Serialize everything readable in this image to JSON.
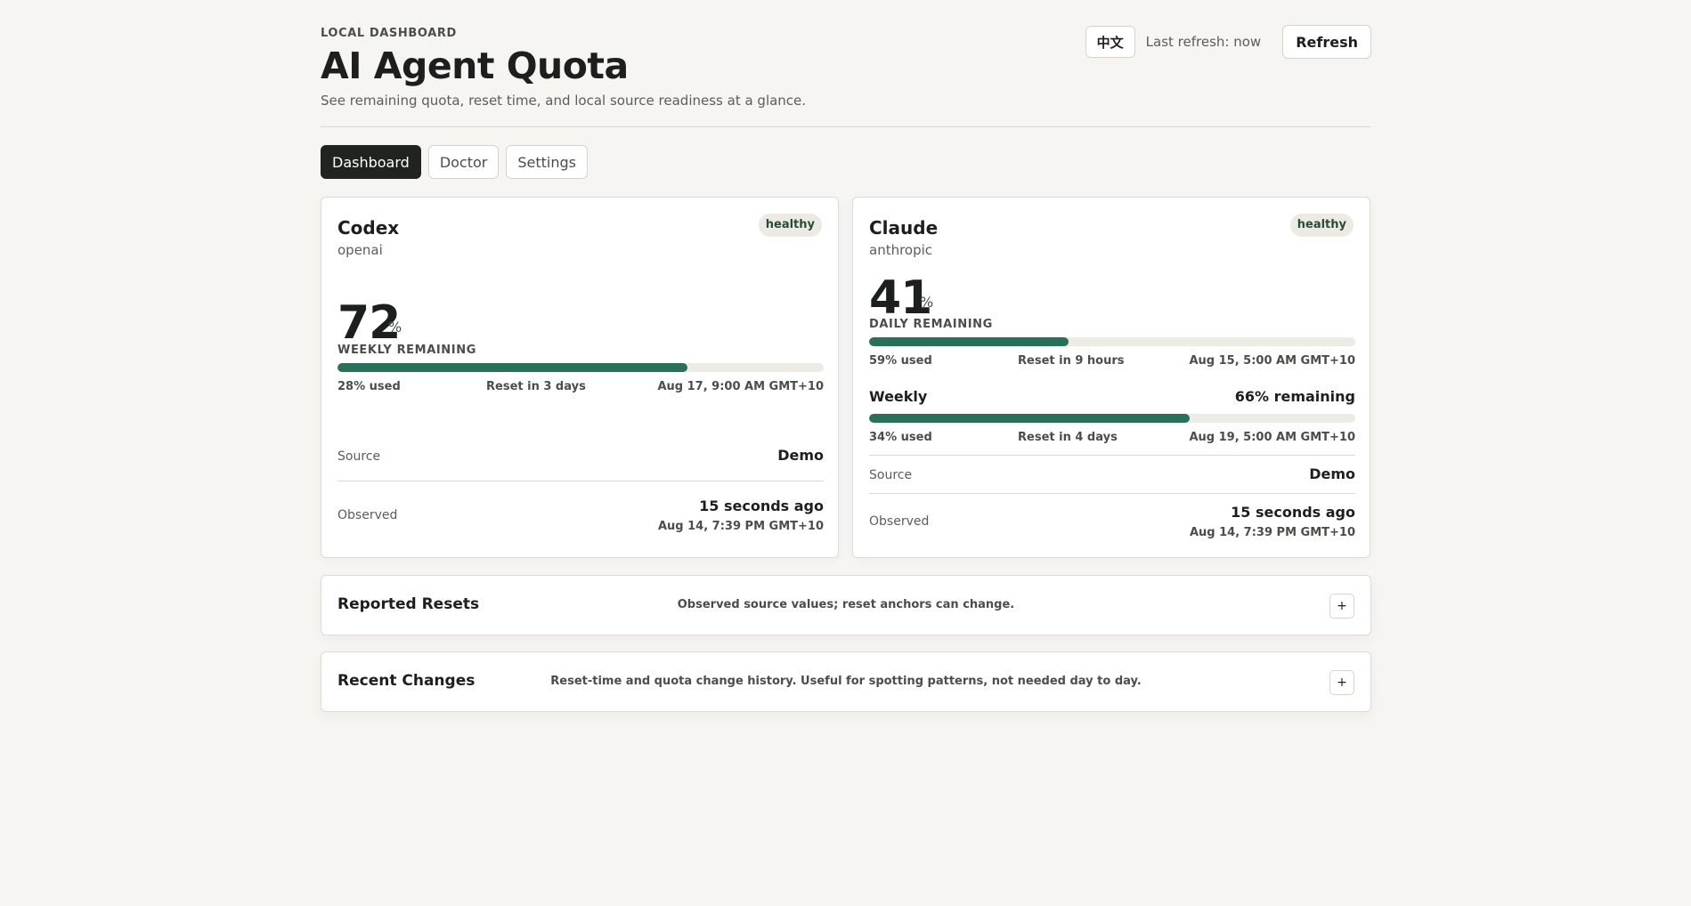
{
  "header": {
    "eyebrow": "LOCAL DASHBOARD",
    "title": "AI Agent Quota",
    "subtitle": "See remaining quota, reset time, and local source readiness at a glance.",
    "language_button": "中文",
    "last_refresh": "Last refresh: now",
    "refresh_label": "Refresh"
  },
  "tabs": [
    {
      "label": "Dashboard",
      "active": true
    },
    {
      "label": "Doctor",
      "active": false
    },
    {
      "label": "Settings",
      "active": false
    }
  ],
  "cards": [
    {
      "name": "Codex",
      "provider": "openai",
      "status": "healthy",
      "primary": {
        "value": "72",
        "unit": "%",
        "label": "WEEKLY REMAINING",
        "used_fraction": 0.72,
        "used_text": "28% used",
        "reset_in": "Reset in 3 days",
        "reset_at": "Aug 17, 9:00 AM GMT+10"
      },
      "source_label": "Source",
      "source_value": "Demo",
      "observed_label": "Observed",
      "observed_ago": "15 seconds ago",
      "observed_at": "Aug 14, 7:39 PM GMT+10"
    },
    {
      "name": "Claude",
      "provider": "anthropic",
      "status": "healthy",
      "primary": {
        "value": "41",
        "unit": "%",
        "label": "DAILY REMAINING",
        "used_fraction": 0.41,
        "used_text": "59% used",
        "reset_in": "Reset in 9 hours",
        "reset_at": "Aug 15, 5:00 AM GMT+10"
      },
      "weekly": {
        "label": "Weekly",
        "remaining_text": "66% remaining",
        "used_fraction": 0.66,
        "used_text": "34% used",
        "reset_in": "Reset in 4 days",
        "reset_at": "Aug 19, 5:00 AM GMT+10"
      },
      "source_label": "Source",
      "source_value": "Demo",
      "observed_label": "Observed",
      "observed_ago": "15 seconds ago",
      "observed_at": "Aug 14, 7:39 PM GMT+10"
    }
  ],
  "sections": [
    {
      "title": "Reported Resets",
      "description": "Observed source values; reset anchors can change.",
      "expand_icon": "+"
    },
    {
      "title": "Recent Changes",
      "description": "Reset-time and quota change history. Useful for spotting patterns, not needed day to day.",
      "expand_icon": "+"
    }
  ],
  "colors": {
    "background": "#f6f5f1",
    "accent": "#28705a",
    "active_tab": "#1f2421",
    "badge_bg": "#ebeae3"
  }
}
